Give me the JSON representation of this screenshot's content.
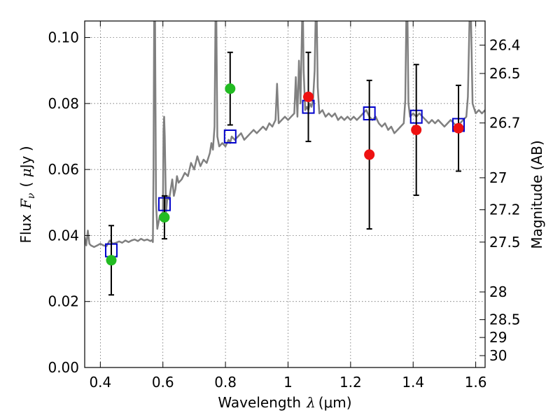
{
  "chart_data": {
    "type": "scatter",
    "xlabel": "Wavelength  λ (μm)",
    "ylabel": "Flux  F_ν  ( μJy )",
    "ylabel_parts": {
      "prefix": "Flux",
      "symbol": "F",
      "subscript": "ν",
      "unit_open": "( ",
      "unit_mu": "μ",
      "unit_rest": "Jy )"
    },
    "xlabel_parts": {
      "prefix": "Wavelength",
      "symbol": "λ",
      "unit": "(μm)"
    },
    "right_ylabel": "Magnitude (AB)",
    "xlim": [
      0.35,
      1.63
    ],
    "ylim": [
      0.0,
      0.105
    ],
    "grid": true,
    "x_ticks": [
      {
        "value": 0.4,
        "label": "0.4"
      },
      {
        "value": 0.6,
        "label": "0.6"
      },
      {
        "value": 0.8,
        "label": "0.8"
      },
      {
        "value": 1.0,
        "label": "1"
      },
      {
        "value": 1.2,
        "label": "1.2"
      },
      {
        "value": 1.4,
        "label": "1.4"
      },
      {
        "value": 1.6,
        "label": "1.6"
      }
    ],
    "y_ticks": [
      {
        "value": 0.0,
        "label": "0.00"
      },
      {
        "value": 0.02,
        "label": "0.02"
      },
      {
        "value": 0.04,
        "label": "0.04"
      },
      {
        "value": 0.06,
        "label": "0.06"
      },
      {
        "value": 0.08,
        "label": "0.08"
      },
      {
        "value": 0.1,
        "label": "0.10"
      }
    ],
    "right_ticks": [
      {
        "flux": 0.0977,
        "label": "26.4"
      },
      {
        "flux": 0.0891,
        "label": "26.5"
      },
      {
        "flux": 0.0741,
        "label": "26.7"
      },
      {
        "flux": 0.0575,
        "label": "27"
      },
      {
        "flux": 0.0478,
        "label": "27.2"
      },
      {
        "flux": 0.038,
        "label": "27.5"
      },
      {
        "flux": 0.0229,
        "label": "28"
      },
      {
        "flux": 0.0145,
        "label": "28.5"
      },
      {
        "flux": 0.0091,
        "label": "29"
      },
      {
        "flux": 0.0036,
        "label": "30"
      }
    ],
    "series": [
      {
        "name": "model-spectrum",
        "kind": "line",
        "color": "#808080",
        "points": [
          [
            0.35,
            0.0395
          ],
          [
            0.355,
            0.037
          ],
          [
            0.36,
            0.0415
          ],
          [
            0.365,
            0.0375
          ],
          [
            0.37,
            0.037
          ],
          [
            0.38,
            0.0365
          ],
          [
            0.39,
            0.037
          ],
          [
            0.4,
            0.0375
          ],
          [
            0.41,
            0.037
          ],
          [
            0.42,
            0.0368
          ],
          [
            0.43,
            0.0385
          ],
          [
            0.44,
            0.0375
          ],
          [
            0.45,
            0.0378
          ],
          [
            0.46,
            0.0382
          ],
          [
            0.47,
            0.0378
          ],
          [
            0.48,
            0.0385
          ],
          [
            0.49,
            0.038
          ],
          [
            0.5,
            0.0385
          ],
          [
            0.51,
            0.0388
          ],
          [
            0.52,
            0.0383
          ],
          [
            0.53,
            0.039
          ],
          [
            0.54,
            0.0385
          ],
          [
            0.55,
            0.0388
          ],
          [
            0.56,
            0.0383
          ],
          [
            0.565,
            0.0386
          ],
          [
            0.568,
            0.038
          ],
          [
            0.57,
            0.06
          ],
          [
            0.572,
            0.105
          ],
          [
            0.575,
            0.105
          ],
          [
            0.578,
            0.05
          ],
          [
            0.582,
            0.042
          ],
          [
            0.59,
            0.046
          ],
          [
            0.6,
            0.047
          ],
          [
            0.602,
            0.072
          ],
          [
            0.604,
            0.076
          ],
          [
            0.606,
            0.07
          ],
          [
            0.61,
            0.047
          ],
          [
            0.615,
            0.052
          ],
          [
            0.62,
            0.051
          ],
          [
            0.625,
            0.054
          ],
          [
            0.63,
            0.057
          ],
          [
            0.635,
            0.052
          ],
          [
            0.64,
            0.054
          ],
          [
            0.645,
            0.058
          ],
          [
            0.65,
            0.056
          ],
          [
            0.66,
            0.057
          ],
          [
            0.67,
            0.059
          ],
          [
            0.68,
            0.058
          ],
          [
            0.69,
            0.062
          ],
          [
            0.7,
            0.06
          ],
          [
            0.71,
            0.064
          ],
          [
            0.72,
            0.061
          ],
          [
            0.73,
            0.063
          ],
          [
            0.74,
            0.062
          ],
          [
            0.75,
            0.065
          ],
          [
            0.755,
            0.068
          ],
          [
            0.76,
            0.066
          ],
          [
            0.765,
            0.073
          ],
          [
            0.768,
            0.105
          ],
          [
            0.771,
            0.105
          ],
          [
            0.774,
            0.07
          ],
          [
            0.78,
            0.067
          ],
          [
            0.79,
            0.068
          ],
          [
            0.8,
            0.067
          ],
          [
            0.81,
            0.069
          ],
          [
            0.815,
            0.068
          ],
          [
            0.82,
            0.07
          ],
          [
            0.83,
            0.069
          ],
          [
            0.84,
            0.07
          ],
          [
            0.85,
            0.071
          ],
          [
            0.86,
            0.069
          ],
          [
            0.87,
            0.07
          ],
          [
            0.88,
            0.071
          ],
          [
            0.89,
            0.072
          ],
          [
            0.9,
            0.071
          ],
          [
            0.91,
            0.072
          ],
          [
            0.92,
            0.073
          ],
          [
            0.93,
            0.072
          ],
          [
            0.94,
            0.074
          ],
          [
            0.95,
            0.073
          ],
          [
            0.96,
            0.075
          ],
          [
            0.965,
            0.086
          ],
          [
            0.97,
            0.074
          ],
          [
            0.98,
            0.075
          ],
          [
            0.99,
            0.076
          ],
          [
            1.0,
            0.075
          ],
          [
            1.01,
            0.076
          ],
          [
            1.02,
            0.077
          ],
          [
            1.025,
            0.088
          ],
          [
            1.03,
            0.076
          ],
          [
            1.035,
            0.093
          ],
          [
            1.04,
            0.08
          ],
          [
            1.045,
            0.105
          ],
          [
            1.048,
            0.105
          ],
          [
            1.05,
            0.09
          ],
          [
            1.055,
            0.078
          ],
          [
            1.06,
            0.079
          ],
          [
            1.065,
            0.078
          ],
          [
            1.07,
            0.08
          ],
          [
            1.075,
            0.079
          ],
          [
            1.08,
            0.081
          ],
          [
            1.085,
            0.09
          ],
          [
            1.088,
            0.105
          ],
          [
            1.092,
            0.105
          ],
          [
            1.095,
            0.085
          ],
          [
            1.1,
            0.077
          ],
          [
            1.11,
            0.078
          ],
          [
            1.12,
            0.076
          ],
          [
            1.13,
            0.077
          ],
          [
            1.14,
            0.076
          ],
          [
            1.15,
            0.077
          ],
          [
            1.16,
            0.075
          ],
          [
            1.17,
            0.076
          ],
          [
            1.18,
            0.075
          ],
          [
            1.19,
            0.076
          ],
          [
            1.2,
            0.075
          ],
          [
            1.21,
            0.076
          ],
          [
            1.22,
            0.075
          ],
          [
            1.23,
            0.076
          ],
          [
            1.24,
            0.077
          ],
          [
            1.25,
            0.078
          ],
          [
            1.26,
            0.076
          ],
          [
            1.27,
            0.075
          ],
          [
            1.28,
            0.076
          ],
          [
            1.29,
            0.074
          ],
          [
            1.3,
            0.073
          ],
          [
            1.31,
            0.074
          ],
          [
            1.32,
            0.072
          ],
          [
            1.33,
            0.073
          ],
          [
            1.34,
            0.071
          ],
          [
            1.35,
            0.072
          ],
          [
            1.36,
            0.073
          ],
          [
            1.37,
            0.074
          ],
          [
            1.375,
            0.081
          ],
          [
            1.378,
            0.105
          ],
          [
            1.382,
            0.105
          ],
          [
            1.385,
            0.08
          ],
          [
            1.39,
            0.076
          ],
          [
            1.4,
            0.077
          ],
          [
            1.41,
            0.076
          ],
          [
            1.42,
            0.077
          ],
          [
            1.43,
            0.076
          ],
          [
            1.44,
            0.075
          ],
          [
            1.45,
            0.074
          ],
          [
            1.46,
            0.075
          ],
          [
            1.47,
            0.074
          ],
          [
            1.48,
            0.075
          ],
          [
            1.49,
            0.074
          ],
          [
            1.5,
            0.073
          ],
          [
            1.51,
            0.074
          ],
          [
            1.52,
            0.075
          ],
          [
            1.53,
            0.074
          ],
          [
            1.54,
            0.073
          ],
          [
            1.55,
            0.074
          ],
          [
            1.56,
            0.075
          ],
          [
            1.57,
            0.076
          ],
          [
            1.575,
            0.082
          ],
          [
            1.58,
            0.105
          ],
          [
            1.585,
            0.105
          ],
          [
            1.59,
            0.08
          ],
          [
            1.6,
            0.077
          ],
          [
            1.61,
            0.078
          ],
          [
            1.62,
            0.077
          ],
          [
            1.63,
            0.078
          ]
        ]
      },
      {
        "name": "model-bandpass-flux",
        "kind": "open-square",
        "color": "#0000cc",
        "x": [
          0.435,
          0.605,
          0.815,
          1.065,
          1.26,
          1.41,
          1.545
        ],
        "y": [
          0.0355,
          0.0495,
          0.07,
          0.079,
          0.077,
          0.076,
          0.0735
        ]
      },
      {
        "name": "observed-optical",
        "kind": "filled-circle",
        "color": "#22bb22",
        "x": [
          0.435,
          0.605,
          0.815
        ],
        "y": [
          0.0325,
          0.0455,
          0.0845
        ],
        "err": [
          0.0105,
          0.0065,
          0.011
        ]
      },
      {
        "name": "observed-nir",
        "kind": "filled-circle",
        "color": "#ee1111",
        "x": [
          1.065,
          1.26,
          1.41,
          1.545
        ],
        "y": [
          0.082,
          0.0645,
          0.072,
          0.0725
        ],
        "err": [
          0.0135,
          0.0225,
          0.0198,
          0.013
        ]
      }
    ]
  }
}
